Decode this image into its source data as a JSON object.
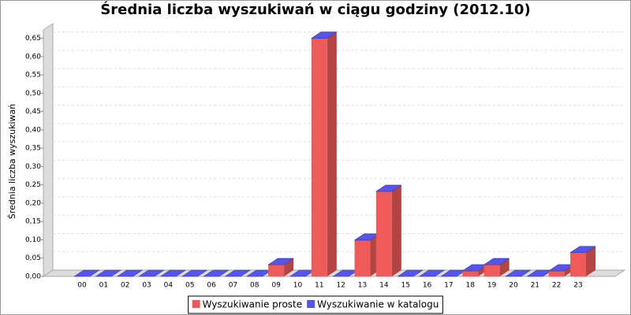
{
  "chart_data": {
    "type": "bar3d_stacked",
    "title": "Średnia liczba wyszukiwań w ciągu godziny (2012.10)",
    "y_label": "Średnia liczba wyszukiwań",
    "categories": [
      "00",
      "01",
      "02",
      "03",
      "04",
      "05",
      "06",
      "07",
      "08",
      "09",
      "10",
      "11",
      "12",
      "13",
      "14",
      "15",
      "16",
      "17",
      "18",
      "19",
      "20",
      "21",
      "22",
      "23"
    ],
    "series": [
      {
        "name": "Wyszukiwanie proste",
        "color": "#ef5a5a",
        "values": [
          0,
          0,
          0,
          0,
          0,
          0,
          0,
          0,
          0,
          0.032,
          0,
          0.65,
          0,
          0.099,
          0.232,
          0,
          0,
          0,
          0.015,
          0.032,
          0,
          0,
          0.015,
          0.065
        ]
      },
      {
        "name": "Wyszukiwanie w katalogu",
        "color": "#5555ee",
        "values": [
          0,
          0,
          0,
          0,
          0,
          0,
          0,
          0,
          0,
          0,
          0,
          0,
          0,
          0,
          0,
          0,
          0,
          0,
          0,
          0,
          0,
          0,
          0,
          0
        ]
      }
    ],
    "ylim": [
      0,
      0.69
    ],
    "yticks": [
      {
        "value": 0,
        "label": "0,00"
      },
      {
        "value": 0.05,
        "label": "0,05"
      },
      {
        "value": 0.1,
        "label": "0,10"
      },
      {
        "value": 0.15,
        "label": "0,15"
      },
      {
        "value": 0.2,
        "label": "0,20"
      },
      {
        "value": 0.25,
        "label": "0,25"
      },
      {
        "value": 0.3,
        "label": "0,30"
      },
      {
        "value": 0.35,
        "label": "0,35"
      },
      {
        "value": 0.4,
        "label": "0,40"
      },
      {
        "value": 0.45,
        "label": "0,45"
      },
      {
        "value": 0.5,
        "label": "0,50"
      },
      {
        "value": 0.55,
        "label": "0,55"
      },
      {
        "value": 0.6,
        "label": "0,60"
      },
      {
        "value": 0.65,
        "label": "0,65"
      }
    ],
    "grid": true
  }
}
